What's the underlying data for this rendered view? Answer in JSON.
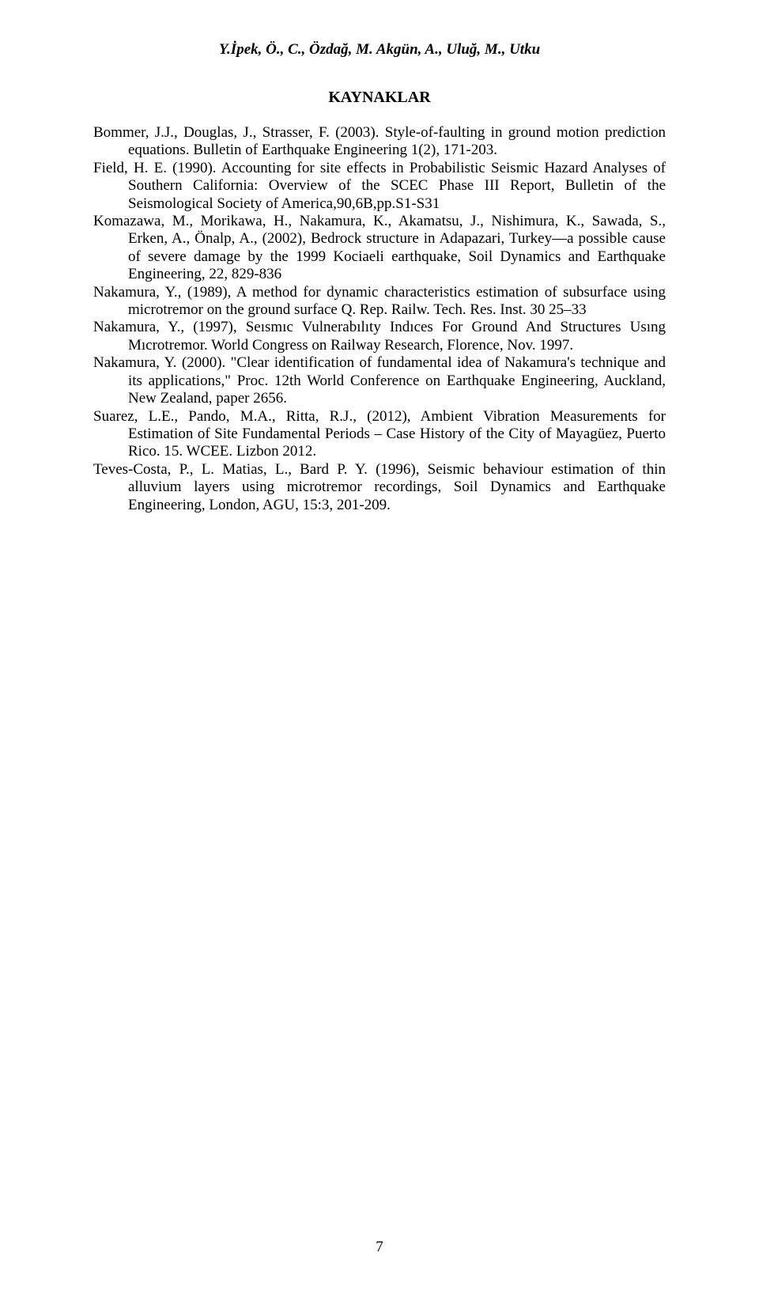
{
  "running_head": "Y.İpek, Ö., C., Özdağ, M. Akgün, A., Uluğ, M., Utku",
  "section_title": "KAYNAKLAR",
  "references": [
    "Bommer, J.J., Douglas, J., Strasser, F. (2003). Style-of-faulting in ground motion prediction equations. Bulletin of Earthquake Engineering 1(2), 171-203.",
    "Field, H. E. (1990). Accounting for site effects in Probabilistic Seismic Hazard Analyses of Southern California: Overview of the SCEC Phase III Report, Bulletin of the Seismological Society of America,90,6B,pp.S1-S31",
    "Komazawa, M., Morikawa, H., Nakamura, K., Akamatsu, J., Nishimura, K., Sawada, S., Erken, A., Önalp, A., (2002), Bedrock structure in Adapazari, Turkey—a possible cause of severe damage by the 1999 Kociaeli earthquake, Soil Dynamics and Earthquake Engineering, 22, 829-836",
    "Nakamura, Y., (1989), A method for dynamic characteristics estimation of subsurface using microtremor on the ground surface Q. Rep. Railw. Tech. Res. Inst. 30 25–33",
    "Nakamura, Y., (1997), Seısmıc Vulnerabılıty Indıces For Ground And Structures Usıng Mıcrotremor. World Congress on Railway Research, Florence, Nov. 1997.",
    "Nakamura, Y. (2000). \"Clear identification of fundamental idea of Nakamura's technique and its applications,\" Proc. 12th World Conference on Earthquake Engineering, Auckland, New Zealand, paper 2656.",
    "Suarez, L.E., Pando, M.A., Ritta, R.J., (2012), Ambient Vibration Measurements for Estimation of Site Fundamental Periods – Case History of the City of Mayagüez, Puerto Rico. 15. WCEE. Lizbon 2012.",
    "Teves-Costa, P., L. Matias, L., Bard P. Y. (1996), Seismic behaviour estimation of thin alluvium layers using microtremor recordings, Soil Dynamics and Earthquake Engineering, London, AGU, 15:3, 201-209."
  ],
  "page_number": "7"
}
